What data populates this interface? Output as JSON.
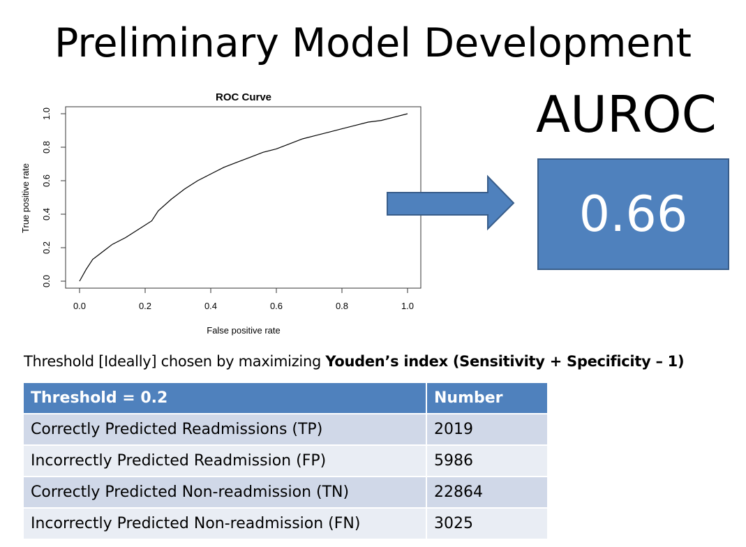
{
  "slide": {
    "title": "Preliminary Model Development"
  },
  "auroc": {
    "label": "AUROC",
    "value": "0.66",
    "box_color": "#4f81bd"
  },
  "note": {
    "prefix": "Threshold [Ideally] chosen by maximizing ",
    "bold": "Youden’s index (Sensitivity + Specificity – 1)"
  },
  "table": {
    "headers": [
      "Threshold = 0.2",
      "Number"
    ],
    "rows": [
      [
        "Correctly Predicted Readmissions (TP)",
        "2019"
      ],
      [
        "Incorrectly Predicted Readmission (FP)",
        "5986"
      ],
      [
        "Correctly Predicted Non-readmission (TN)",
        "22864"
      ],
      [
        "Incorrectly Predicted Non-readmission (FN)",
        "3025"
      ]
    ],
    "header_color": "#4f81bd"
  },
  "chart_data": {
    "type": "line",
    "title": "ROC Curve",
    "xlabel": "False positive rate",
    "ylabel": "True positive rate",
    "xlim": [
      0,
      1
    ],
    "ylim": [
      0,
      1
    ],
    "xticks": [
      "0.0",
      "0.2",
      "0.4",
      "0.6",
      "0.8",
      "1.0"
    ],
    "yticks": [
      "0.0",
      "0.2",
      "0.4",
      "0.6",
      "0.8",
      "1.0"
    ],
    "grid": false,
    "series": [
      {
        "x": [
          0,
          0.02,
          0.04,
          0.06,
          0.08,
          0.1,
          0.14,
          0.18,
          0.22,
          0.24,
          0.28,
          0.32,
          0.36,
          0.4,
          0.44,
          0.48,
          0.52,
          0.56,
          0.6,
          0.64,
          0.68,
          0.72,
          0.76,
          0.8,
          0.84,
          0.88,
          0.92,
          0.96,
          1.0
        ],
        "y": [
          0,
          0.07,
          0.13,
          0.16,
          0.19,
          0.22,
          0.26,
          0.31,
          0.36,
          0.42,
          0.49,
          0.55,
          0.6,
          0.64,
          0.68,
          0.71,
          0.74,
          0.77,
          0.79,
          0.82,
          0.85,
          0.87,
          0.89,
          0.91,
          0.93,
          0.95,
          0.96,
          0.98,
          1.0
        ]
      }
    ]
  }
}
